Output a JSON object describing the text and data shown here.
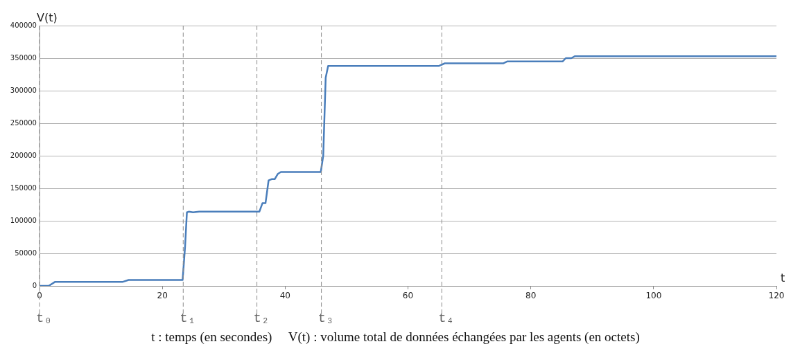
{
  "chart_data": {
    "type": "line",
    "xlabel": "t",
    "ylabel": "V(t)",
    "x": [
      0,
      1.5,
      2.5,
      13.5,
      14.5,
      23.3,
      23.7,
      24,
      24.3,
      25,
      26,
      35.8,
      36.3,
      36.8,
      37.3,
      37.8,
      38.3,
      38.8,
      39.3,
      45.8,
      46.2,
      46.6,
      47,
      65,
      66,
      75.5,
      76.2,
      85.2,
      85.7,
      86.6,
      87.2,
      120
    ],
    "series": [
      {
        "color": "#4a7ebb",
        "values": [
          0,
          0,
          6000,
          6000,
          9000,
          9000,
          60000,
          113000,
          114000,
          113000,
          114000,
          114000,
          127000,
          127000,
          162000,
          164000,
          164000,
          172000,
          175000,
          175000,
          200000,
          320000,
          338000,
          338000,
          342000,
          342000,
          345000,
          345000,
          350000,
          350000,
          353000,
          353000
        ]
      }
    ],
    "xlim": [
      0,
      120
    ],
    "xticks": [
      0,
      20,
      40,
      60,
      80,
      100,
      120
    ],
    "ylim": [
      0,
      400000
    ],
    "yticks": [
      0,
      50000,
      100000,
      150000,
      200000,
      250000,
      300000,
      350000,
      400000
    ],
    "grid": "y",
    "legend": false,
    "marker": "none",
    "line_style": "solid",
    "ref_lines": [
      {
        "axis": "x",
        "value": 0,
        "label": "t₀",
        "color": "#8c8c8c",
        "line_style": "dashed"
      },
      {
        "axis": "x",
        "value": 23.4,
        "label": "t₁",
        "color": "#8c8c8c",
        "line_style": "dashed"
      },
      {
        "axis": "x",
        "value": 35.4,
        "label": "t₂",
        "color": "#8c8c8c",
        "line_style": "dashed"
      },
      {
        "axis": "x",
        "value": 45.9,
        "label": "t₃",
        "color": "#8c8c8c",
        "line_style": "dashed"
      },
      {
        "axis": "x",
        "value": 65.5,
        "label": "t₄",
        "color": "#8c8c8c",
        "line_style": "dashed"
      }
    ],
    "annotations": [
      "t : temps (en secondes)     V(t) : volume total de données échangées par les agents (en octets)"
    ]
  }
}
